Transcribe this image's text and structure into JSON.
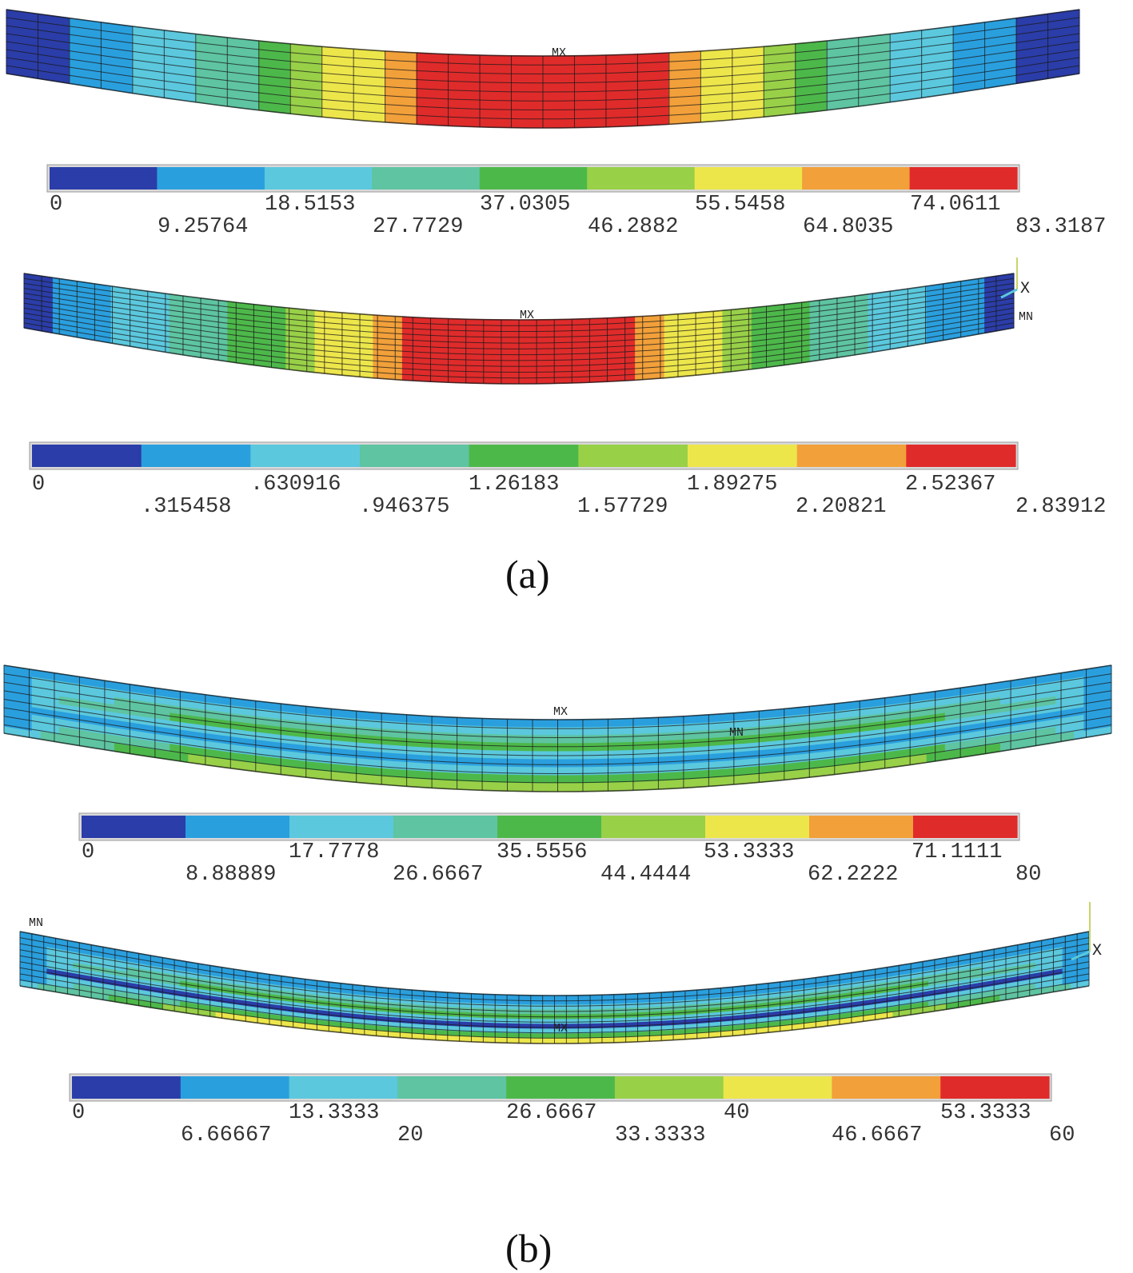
{
  "palette": [
    "#2b3da8",
    "#2a9fde",
    "#5bc8dd",
    "#5ec4a1",
    "#4db84a",
    "#98d048",
    "#ede64b",
    "#f2a03a",
    "#e02b2b"
  ],
  "mesh_color": "#1a1a1a",
  "panels": [
    {
      "caption": "(a)",
      "plots": [
        {
          "id": "a1",
          "markers": [
            {
              "label": "MX",
              "kind": "max"
            }
          ],
          "profile": [
            0,
            0,
            1,
            1,
            2,
            2,
            3,
            3,
            4,
            5,
            6,
            6,
            7,
            8,
            8,
            8,
            8,
            8,
            8,
            8,
            8,
            7,
            6,
            6,
            5,
            4,
            3,
            3,
            2,
            2,
            1,
            1,
            0,
            0
          ],
          "legend": {
            "ticks": [
              "0",
              "9.25764",
              "18.5153",
              "27.7729",
              "37.0305",
              "46.2882",
              "55.5458",
              "64.8035",
              "74.0611",
              "83.3187"
            ]
          }
        },
        {
          "id": "a2",
          "markers": [
            {
              "label": "MX",
              "kind": "max"
            },
            {
              "label": "MN",
              "kind": "min"
            }
          ],
          "axis": "X",
          "profile": [
            0,
            1,
            1,
            2,
            2,
            3,
            3,
            4,
            4,
            5,
            6,
            6,
            7,
            8,
            8,
            8,
            8,
            8,
            8,
            8,
            8,
            7,
            6,
            6,
            5,
            4,
            4,
            3,
            3,
            2,
            2,
            1,
            1,
            0
          ],
          "legend": {
            "ticks": [
              "0",
              ".315458",
              ".630916",
              ".946375",
              "1.26183",
              "1.57729",
              "1.89275",
              "2.20821",
              "2.52367",
              "2.83912"
            ]
          }
        }
      ]
    },
    {
      "caption": "(b)",
      "plots": [
        {
          "id": "b1",
          "markers": [
            {
              "label": "MX",
              "kind": "max"
            },
            {
              "label": "MN",
              "kind": "min"
            }
          ],
          "bands": [
            1,
            2,
            3,
            4,
            2,
            1,
            2,
            4,
            5
          ],
          "legend": {
            "ticks": [
              "0",
              "8.88889",
              "17.7778",
              "26.6667",
              "35.5556",
              "44.4444",
              "53.3333",
              "62.2222",
              "71.1111",
              "80"
            ]
          }
        },
        {
          "id": "b2",
          "markers": [
            {
              "label": "MN",
              "kind": "min"
            },
            {
              "label": "MX",
              "kind": "max"
            }
          ],
          "axis": "X",
          "bands": [
            1,
            1,
            2,
            3,
            4,
            2,
            0,
            2,
            4,
            6
          ],
          "legend": {
            "ticks": [
              "0",
              "6.66667",
              "13.3333",
              "20",
              "26.6667",
              "33.3333",
              "40",
              "46.6667",
              "53.3333",
              "60"
            ]
          }
        }
      ]
    }
  ]
}
